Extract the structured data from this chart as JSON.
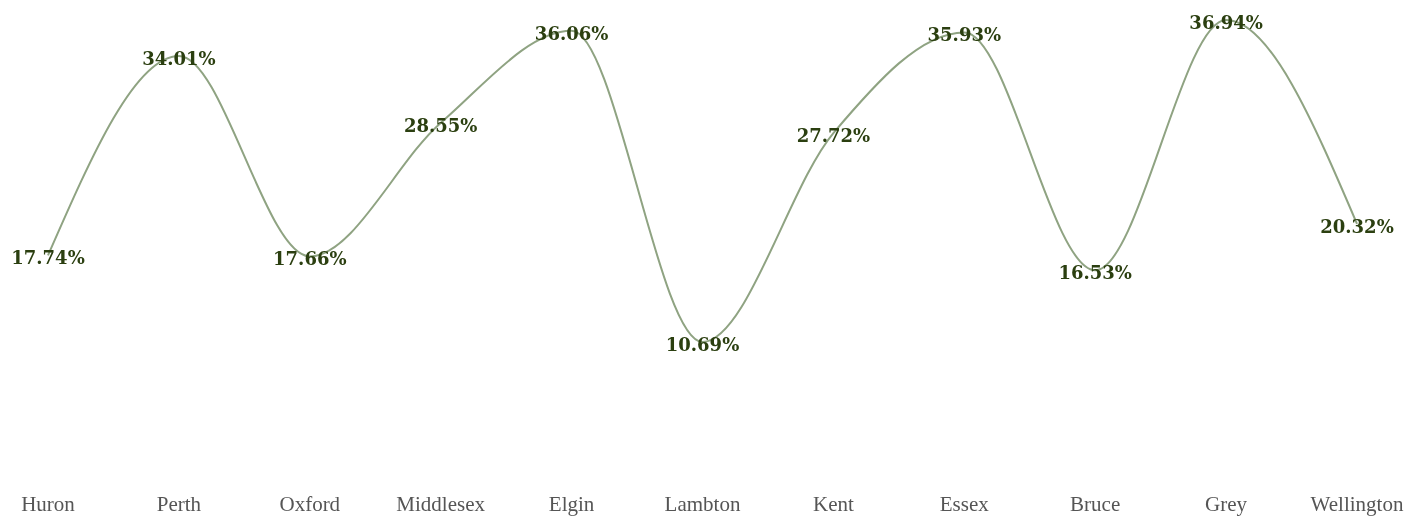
{
  "chart_data": {
    "type": "line",
    "categories": [
      "Huron",
      "Perth",
      "Oxford",
      "Middlesex",
      "Elgin",
      "Lambton",
      "Kent",
      "Essex",
      "Bruce",
      "Grey",
      "Wellington"
    ],
    "series": [
      {
        "color": "#8fa382",
        "values": [
          17.74,
          34.01,
          17.66,
          28.55,
          36.06,
          10.69,
          27.72,
          35.93,
          16.53,
          36.94,
          20.32
        ],
        "value_labels": [
          "17.74%",
          "34.01%",
          "17.66%",
          "28.55%",
          "36.06%",
          "10.69%",
          "27.72%",
          "35.93%",
          "16.53%",
          "36.94%",
          "20.32%"
        ]
      }
    ],
    "marker": "none",
    "line_style": "solid"
  }
}
